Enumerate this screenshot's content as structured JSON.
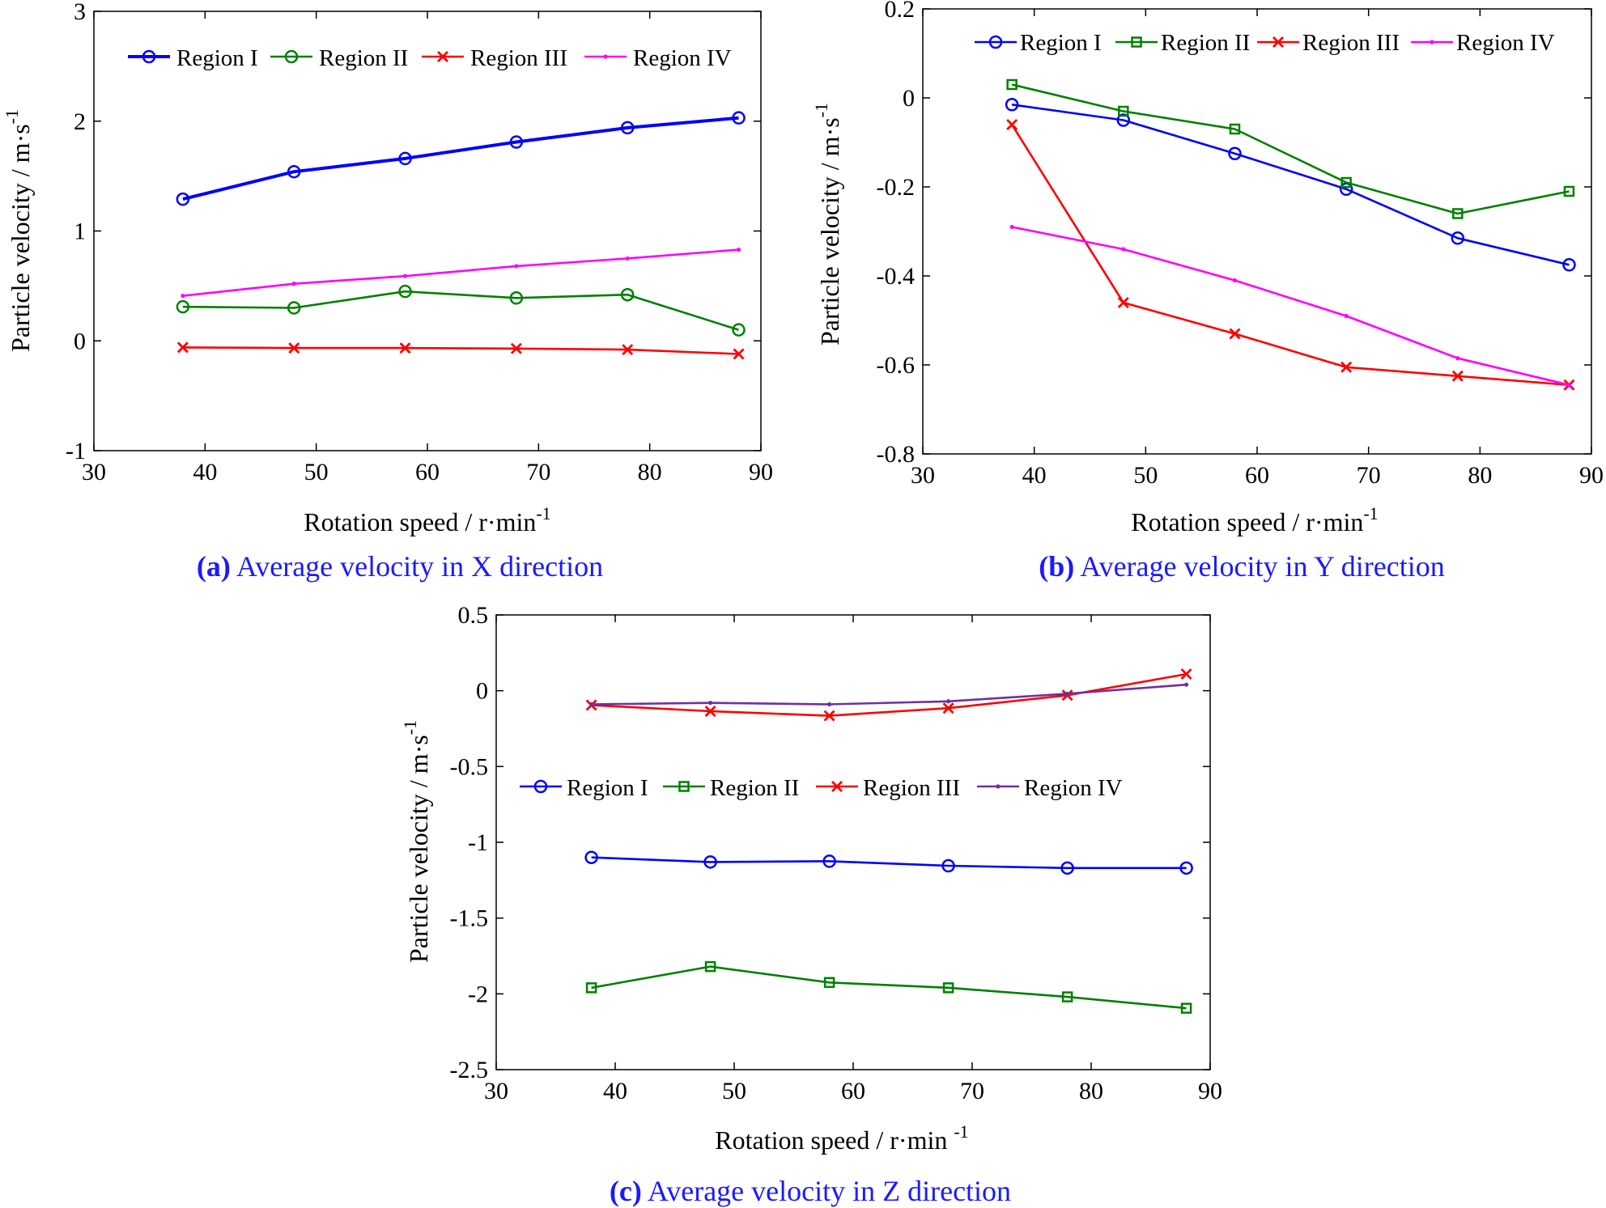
{
  "figure": {
    "panels": [
      {
        "id": "a",
        "caption_prefix": "(a)",
        "caption_text": " Average velocity in X direction"
      },
      {
        "id": "b",
        "caption_prefix": "(b)",
        "caption_text": " Average velocity in Y direction"
      },
      {
        "id": "c",
        "caption_prefix": "(c)",
        "caption_text": " Average velocity in Z direction"
      }
    ],
    "colors": {
      "caption": "#1a1aff",
      "axis": "#000000"
    }
  },
  "chart_data": [
    {
      "id": "a",
      "type": "line",
      "title": "Average velocity in X direction",
      "xlabel": "Rotation speed / r·min",
      "xlabel_sup": "-1",
      "ylabel": "Particle velocity / m·s",
      "ylabel_sup": "-1",
      "xlim": [
        30,
        90
      ],
      "ylim": [
        -1,
        3
      ],
      "xticks": [
        "30",
        "40",
        "50",
        "60",
        "70",
        "80",
        "90"
      ],
      "yticks": [
        "-1",
        "0",
        "1",
        "2",
        "3"
      ],
      "legend_position": "top",
      "x": [
        38,
        48,
        58,
        68,
        78,
        88
      ],
      "series": [
        {
          "name": "Region I",
          "color": "#0000ff",
          "marker": "circle",
          "thick": true,
          "values": [
            1.29,
            1.54,
            1.66,
            1.81,
            1.94,
            2.03
          ]
        },
        {
          "name": "Region II",
          "color": "#008000",
          "marker": "circle",
          "thick": false,
          "values": [
            0.31,
            0.3,
            0.45,
            0.39,
            0.42,
            0.1
          ]
        },
        {
          "name": "Region III",
          "color": "#ff0000",
          "marker": "x",
          "thick": false,
          "values": [
            -0.06,
            -0.065,
            -0.065,
            -0.07,
            -0.08,
            -0.12
          ]
        },
        {
          "name": "Region IV",
          "color": "#ff00ff",
          "marker": "dot",
          "thick": false,
          "values": [
            0.41,
            0.52,
            0.59,
            0.68,
            0.75,
            0.83
          ]
        }
      ]
    },
    {
      "id": "b",
      "type": "line",
      "title": "Average velocity in Y direction",
      "xlabel": "Rotation speed / r·min",
      "xlabel_sup": "-1",
      "ylabel": "Particle velocity / m·s",
      "ylabel_sup": "-1",
      "xlim": [
        30,
        90
      ],
      "ylim": [
        -0.8,
        0.2
      ],
      "xticks": [
        "30",
        "40",
        "50",
        "60",
        "70",
        "80",
        "90"
      ],
      "yticks": [
        "-0.8",
        "-0.6",
        "-0.4",
        "-0.2",
        "0",
        "0.2"
      ],
      "legend_position": "top",
      "x": [
        38,
        48,
        58,
        68,
        78,
        88
      ],
      "series": [
        {
          "name": "Region I",
          "color": "#0000ff",
          "marker": "circle",
          "thick": false,
          "values": [
            -0.015,
            -0.05,
            -0.125,
            -0.205,
            -0.315,
            -0.375
          ]
        },
        {
          "name": "Region II",
          "color": "#008000",
          "marker": "square",
          "thick": false,
          "values": [
            0.03,
            -0.03,
            -0.07,
            -0.19,
            -0.26,
            -0.21
          ]
        },
        {
          "name": "Region III",
          "color": "#ff0000",
          "marker": "x",
          "thick": false,
          "values": [
            -0.06,
            -0.46,
            -0.53,
            -0.605,
            -0.625,
            -0.645
          ]
        },
        {
          "name": "Region IV",
          "color": "#ff00ff",
          "marker": "dot",
          "thick": false,
          "values": [
            -0.29,
            -0.34,
            -0.41,
            -0.49,
            -0.585,
            -0.645
          ]
        }
      ]
    },
    {
      "id": "c",
      "type": "line",
      "title": "Average velocity in Z direction",
      "xlabel": "Rotation speed / r·min",
      "xlabel_sup": "-1",
      "ylabel": "Particle velocity / m·s",
      "ylabel_sup": "-1",
      "xlim": [
        30,
        90
      ],
      "ylim": [
        -2.5,
        0.5
      ],
      "xticks": [
        "30",
        "40",
        "50",
        "60",
        "70",
        "80",
        "90"
      ],
      "yticks": [
        "-2.5",
        "-2",
        "-1.5",
        "-1",
        "-0.5",
        "0",
        "0.5"
      ],
      "legend_position": "middle",
      "x": [
        38,
        48,
        58,
        68,
        78,
        88
      ],
      "series": [
        {
          "name": "Region I",
          "color": "#0000ff",
          "marker": "circle",
          "thick": false,
          "values": [
            -1.1,
            -1.13,
            -1.125,
            -1.155,
            -1.17,
            -1.17
          ]
        },
        {
          "name": "Region II",
          "color": "#008000",
          "marker": "square",
          "thick": false,
          "values": [
            -1.96,
            -1.82,
            -1.925,
            -1.96,
            -2.02,
            -2.095
          ]
        },
        {
          "name": "Region III",
          "color": "#ff0000",
          "marker": "x",
          "thick": false,
          "values": [
            -0.095,
            -0.135,
            -0.165,
            -0.115,
            -0.03,
            0.11
          ]
        },
        {
          "name": "Region IV",
          "color": "#7030a0",
          "marker": "dot",
          "thick": false,
          "values": [
            -0.09,
            -0.08,
            -0.09,
            -0.07,
            -0.02,
            0.04
          ]
        }
      ]
    }
  ]
}
